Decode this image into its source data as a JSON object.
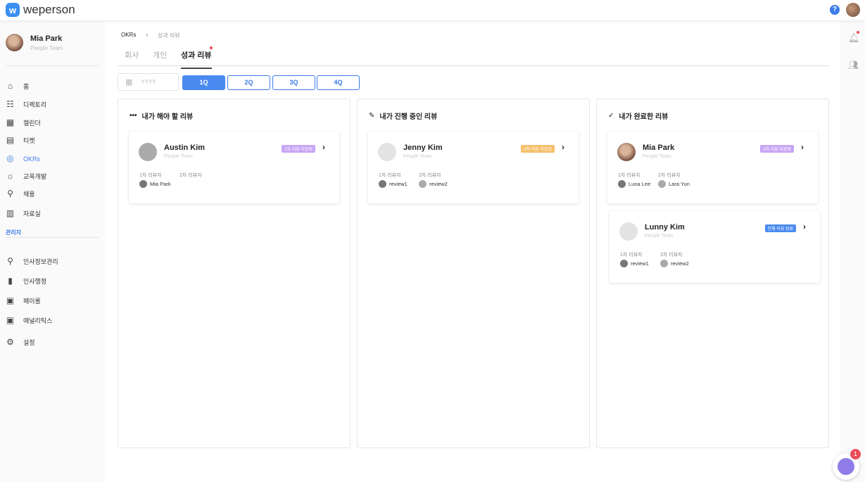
{
  "app": {
    "name": "weperson",
    "logo_letter": "w"
  },
  "user": {
    "name": "Mia Park",
    "team": "People Team"
  },
  "sidebar": {
    "items": [
      {
        "label": "홈",
        "icon": "home-icon",
        "glyph": "⌂"
      },
      {
        "label": "디렉토리",
        "icon": "org-chart-icon",
        "glyph": "☷"
      },
      {
        "label": "캘린더",
        "icon": "calendar-icon",
        "glyph": "▦"
      },
      {
        "label": "티켓",
        "icon": "ticket-icon",
        "glyph": "▤"
      },
      {
        "label": "OKRs",
        "icon": "target-icon",
        "glyph": "◎",
        "active": true
      },
      {
        "label": "교육개발",
        "icon": "lightbulb-icon",
        "glyph": "☼"
      },
      {
        "label": "채용",
        "icon": "user-search-icon",
        "glyph": "⚲"
      },
      {
        "label": "자료실",
        "icon": "archive-icon",
        "glyph": "▥"
      }
    ],
    "admin_label": "관리자",
    "admin_items": [
      {
        "label": "인사정보관리",
        "icon": "user-search-icon",
        "glyph": "⚲"
      },
      {
        "label": "인사행정",
        "icon": "document-icon",
        "glyph": "▮"
      },
      {
        "label": "페이롤",
        "icon": "money-icon",
        "glyph": "▣"
      },
      {
        "label": "애널리틱스",
        "icon": "analytics-icon",
        "glyph": "▣"
      },
      {
        "label": "설정",
        "icon": "gear-icon",
        "glyph": "⚙"
      }
    ]
  },
  "breadcrumb": {
    "root": "OKRs",
    "sep": "›",
    "current": "성과 리뷰"
  },
  "tabs": [
    "회사",
    "개인",
    "성과 리뷰"
  ],
  "filter": {
    "year_placeholder": "YYYY",
    "quarters": [
      "1Q",
      "2Q",
      "3Q",
      "4Q"
    ],
    "selected": "1Q"
  },
  "columns": [
    {
      "title": "내가 해야 할 리뷰",
      "icon": "more-dots-icon",
      "glyph": "•••",
      "cards": [
        {
          "name": "Austin Kim",
          "team": "People Team",
          "badge": "1차 리뷰 미완료",
          "badge_color": "#c8a6f5",
          "avatar_color": "#aaaaaa",
          "r1_label": "1차 리뷰자",
          "r2_label": "2차 리뷰자",
          "r1": "Mia Park",
          "r2": ""
        }
      ]
    },
    {
      "title": "내가 진행 중인 리뷰",
      "icon": "pencil-icon",
      "glyph": "✎",
      "cards": [
        {
          "name": "Jenny Kim",
          "team": "People Team",
          "badge": "2차 리뷰 미완료",
          "badge_color": "#f6bf6a",
          "avatar_color": "#e3e3e3",
          "r1_label": "1차 리뷰자",
          "r2_label": "2차 리뷰자",
          "r1": "review1",
          "r2": "review2"
        }
      ]
    },
    {
      "title": "내가 완료한 리뷰",
      "icon": "check-circle-icon",
      "glyph": "✓",
      "cards": [
        {
          "name": "Mia Park",
          "team": "People Team",
          "badge": "1차 리뷰 미완료",
          "badge_color": "#c8a6f5",
          "avatar_color": "photo",
          "r1_label": "1차 리뷰자",
          "r2_label": "2차 리뷰자",
          "r1": "Luna Lee",
          "r2": "Lara Yun"
        },
        {
          "name": "Lunny Kim",
          "team": "People Team",
          "badge": "전체 리뷰 완료",
          "badge_color": "#4a8af0",
          "avatar_color": "#e3e3e3",
          "r1_label": "1차 리뷰자",
          "r2_label": "2차 리뷰자",
          "r1": "review1",
          "r2": "review2"
        }
      ]
    }
  ],
  "chat": {
    "unread": "1"
  },
  "colors": {
    "accent": "#3b7be8",
    "notification": "#e94c5a"
  }
}
